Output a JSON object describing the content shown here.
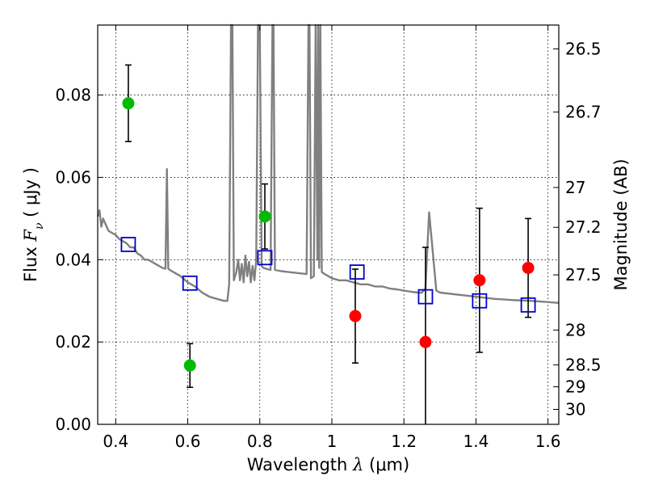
{
  "chart_data": {
    "type": "scatter",
    "title": "",
    "xlabel": {
      "prefix": "Wavelength  ",
      "symbol": "λ",
      "unit": " (μm)"
    },
    "ylabel": {
      "prefix": "Flux  ",
      "symbol": "F",
      "subscript": "ν",
      "unit": "  ( μJy )"
    },
    "ylabel_right": "Magnitude (AB)",
    "xlim": [
      0.35,
      1.63
    ],
    "ylim": [
      0.0,
      0.097
    ],
    "grid": true,
    "x_ticks": [
      {
        "value": 0.4,
        "label": "0.4"
      },
      {
        "value": 0.6,
        "label": "0.6"
      },
      {
        "value": 0.8,
        "label": "0.8"
      },
      {
        "value": 1.0,
        "label": "1"
      },
      {
        "value": 1.2,
        "label": "1.2"
      },
      {
        "value": 1.4,
        "label": "1.4"
      },
      {
        "value": 1.6,
        "label": "1.6"
      }
    ],
    "y_ticks": [
      {
        "value": 0.0,
        "label": "0.00"
      },
      {
        "value": 0.02,
        "label": "0.02"
      },
      {
        "value": 0.04,
        "label": "0.04"
      },
      {
        "value": 0.06,
        "label": "0.06"
      },
      {
        "value": 0.08,
        "label": "0.08"
      }
    ],
    "right_ticks": [
      {
        "mag": 26.5,
        "label": "26.5"
      },
      {
        "mag": 26.7,
        "label": "26.7"
      },
      {
        "mag": 27.0,
        "label": "27"
      },
      {
        "mag": 27.2,
        "label": "27.2"
      },
      {
        "mag": 27.5,
        "label": "27.5"
      },
      {
        "mag": 28.0,
        "label": "28"
      },
      {
        "mag": 28.5,
        "label": "28.5"
      },
      {
        "mag": 29.0,
        "label": "29"
      },
      {
        "mag": 30.0,
        "label": "30"
      }
    ],
    "series": [
      {
        "marker": "circle-green",
        "color": "#00bb00",
        "points": [
          {
            "x": 0.435,
            "y": 0.078,
            "yerr": 0.0093
          },
          {
            "x": 0.606,
            "y": 0.0143,
            "yerr": 0.0053
          },
          {
            "x": 0.814,
            "y": 0.0505,
            "yerr": 0.0079
          }
        ]
      },
      {
        "marker": "circle-red",
        "color": "#ff0000",
        "points": [
          {
            "x": 1.065,
            "y": 0.0263,
            "yerr": 0.0114
          },
          {
            "x": 1.26,
            "y": 0.02,
            "yerr": 0.023
          },
          {
            "x": 1.41,
            "y": 0.035,
            "yerr": 0.0175
          },
          {
            "x": 1.545,
            "y": 0.038,
            "yerr": 0.012
          }
        ]
      },
      {
        "marker": "open-square-blue",
        "color": "#0000cc",
        "points": [
          {
            "x": 0.435,
            "y": 0.0437
          },
          {
            "x": 0.606,
            "y": 0.0343
          },
          {
            "x": 0.814,
            "y": 0.0405
          },
          {
            "x": 1.07,
            "y": 0.037
          },
          {
            "x": 1.26,
            "y": 0.031
          },
          {
            "x": 1.41,
            "y": 0.03
          },
          {
            "x": 1.545,
            "y": 0.029
          }
        ]
      },
      {
        "marker": "line",
        "color": "#808080",
        "kind": "model-spectrum",
        "points": [
          [
            0.35,
            0.0505
          ],
          [
            0.355,
            0.052
          ],
          [
            0.36,
            0.048
          ],
          [
            0.365,
            0.05
          ],
          [
            0.37,
            0.049
          ],
          [
            0.38,
            0.047
          ],
          [
            0.39,
            0.0465
          ],
          [
            0.4,
            0.046
          ],
          [
            0.41,
            0.045
          ],
          [
            0.42,
            0.0445
          ],
          [
            0.43,
            0.044
          ],
          [
            0.44,
            0.043
          ],
          [
            0.45,
            0.043
          ],
          [
            0.46,
            0.0415
          ],
          [
            0.47,
            0.041
          ],
          [
            0.48,
            0.04
          ],
          [
            0.49,
            0.04
          ],
          [
            0.5,
            0.0395
          ],
          [
            0.51,
            0.039
          ],
          [
            0.52,
            0.0385
          ],
          [
            0.53,
            0.038
          ],
          [
            0.538,
            0.0378
          ],
          [
            0.542,
            0.062
          ],
          [
            0.546,
            0.0378
          ],
          [
            0.55,
            0.0375
          ],
          [
            0.56,
            0.037
          ],
          [
            0.58,
            0.036
          ],
          [
            0.6,
            0.0345
          ],
          [
            0.62,
            0.0335
          ],
          [
            0.64,
            0.032
          ],
          [
            0.66,
            0.031
          ],
          [
            0.68,
            0.0305
          ],
          [
            0.7,
            0.03
          ],
          [
            0.71,
            0.03
          ],
          [
            0.715,
            0.034
          ],
          [
            0.72,
            0.097
          ],
          [
            0.724,
            0.097
          ],
          [
            0.728,
            0.035
          ],
          [
            0.735,
            0.037
          ],
          [
            0.74,
            0.04
          ],
          [
            0.745,
            0.035
          ],
          [
            0.75,
            0.039
          ],
          [
            0.755,
            0.0345
          ],
          [
            0.76,
            0.041
          ],
          [
            0.765,
            0.036
          ],
          [
            0.77,
            0.0395
          ],
          [
            0.775,
            0.0345
          ],
          [
            0.78,
            0.0385
          ],
          [
            0.785,
            0.035
          ],
          [
            0.79,
            0.04
          ],
          [
            0.795,
            0.097
          ],
          [
            0.8,
            0.097
          ],
          [
            0.805,
            0.0385
          ],
          [
            0.81,
            0.038
          ],
          [
            0.83,
            0.0375
          ],
          [
            0.835,
            0.097
          ],
          [
            0.838,
            0.097
          ],
          [
            0.842,
            0.0375
          ],
          [
            0.86,
            0.0372
          ],
          [
            0.88,
            0.037
          ],
          [
            0.9,
            0.0368
          ],
          [
            0.92,
            0.0366
          ],
          [
            0.93,
            0.0365
          ],
          [
            0.935,
            0.097
          ],
          [
            0.938,
            0.097
          ],
          [
            0.942,
            0.0355
          ],
          [
            0.95,
            0.036
          ],
          [
            0.955,
            0.097
          ],
          [
            0.96,
            0.04
          ],
          [
            0.962,
            0.097
          ],
          [
            0.965,
            0.038
          ],
          [
            0.968,
            0.097
          ],
          [
            0.972,
            0.037
          ],
          [
            0.98,
            0.0365
          ],
          [
            1.0,
            0.0355
          ],
          [
            1.02,
            0.035
          ],
          [
            1.04,
            0.035
          ],
          [
            1.06,
            0.0345
          ],
          [
            1.08,
            0.034
          ],
          [
            1.1,
            0.034
          ],
          [
            1.12,
            0.0335
          ],
          [
            1.14,
            0.0335
          ],
          [
            1.16,
            0.033
          ],
          [
            1.18,
            0.0328
          ],
          [
            1.2,
            0.0325
          ],
          [
            1.22,
            0.0322
          ],
          [
            1.24,
            0.032
          ],
          [
            1.25,
            0.032
          ],
          [
            1.26,
            0.033
          ],
          [
            1.27,
            0.0515
          ],
          [
            1.28,
            0.042
          ],
          [
            1.29,
            0.0325
          ],
          [
            1.3,
            0.032
          ],
          [
            1.35,
            0.0315
          ],
          [
            1.4,
            0.031
          ],
          [
            1.45,
            0.0305
          ],
          [
            1.5,
            0.0302
          ],
          [
            1.55,
            0.03
          ],
          [
            1.6,
            0.0297
          ],
          [
            1.63,
            0.0295
          ]
        ]
      }
    ]
  }
}
